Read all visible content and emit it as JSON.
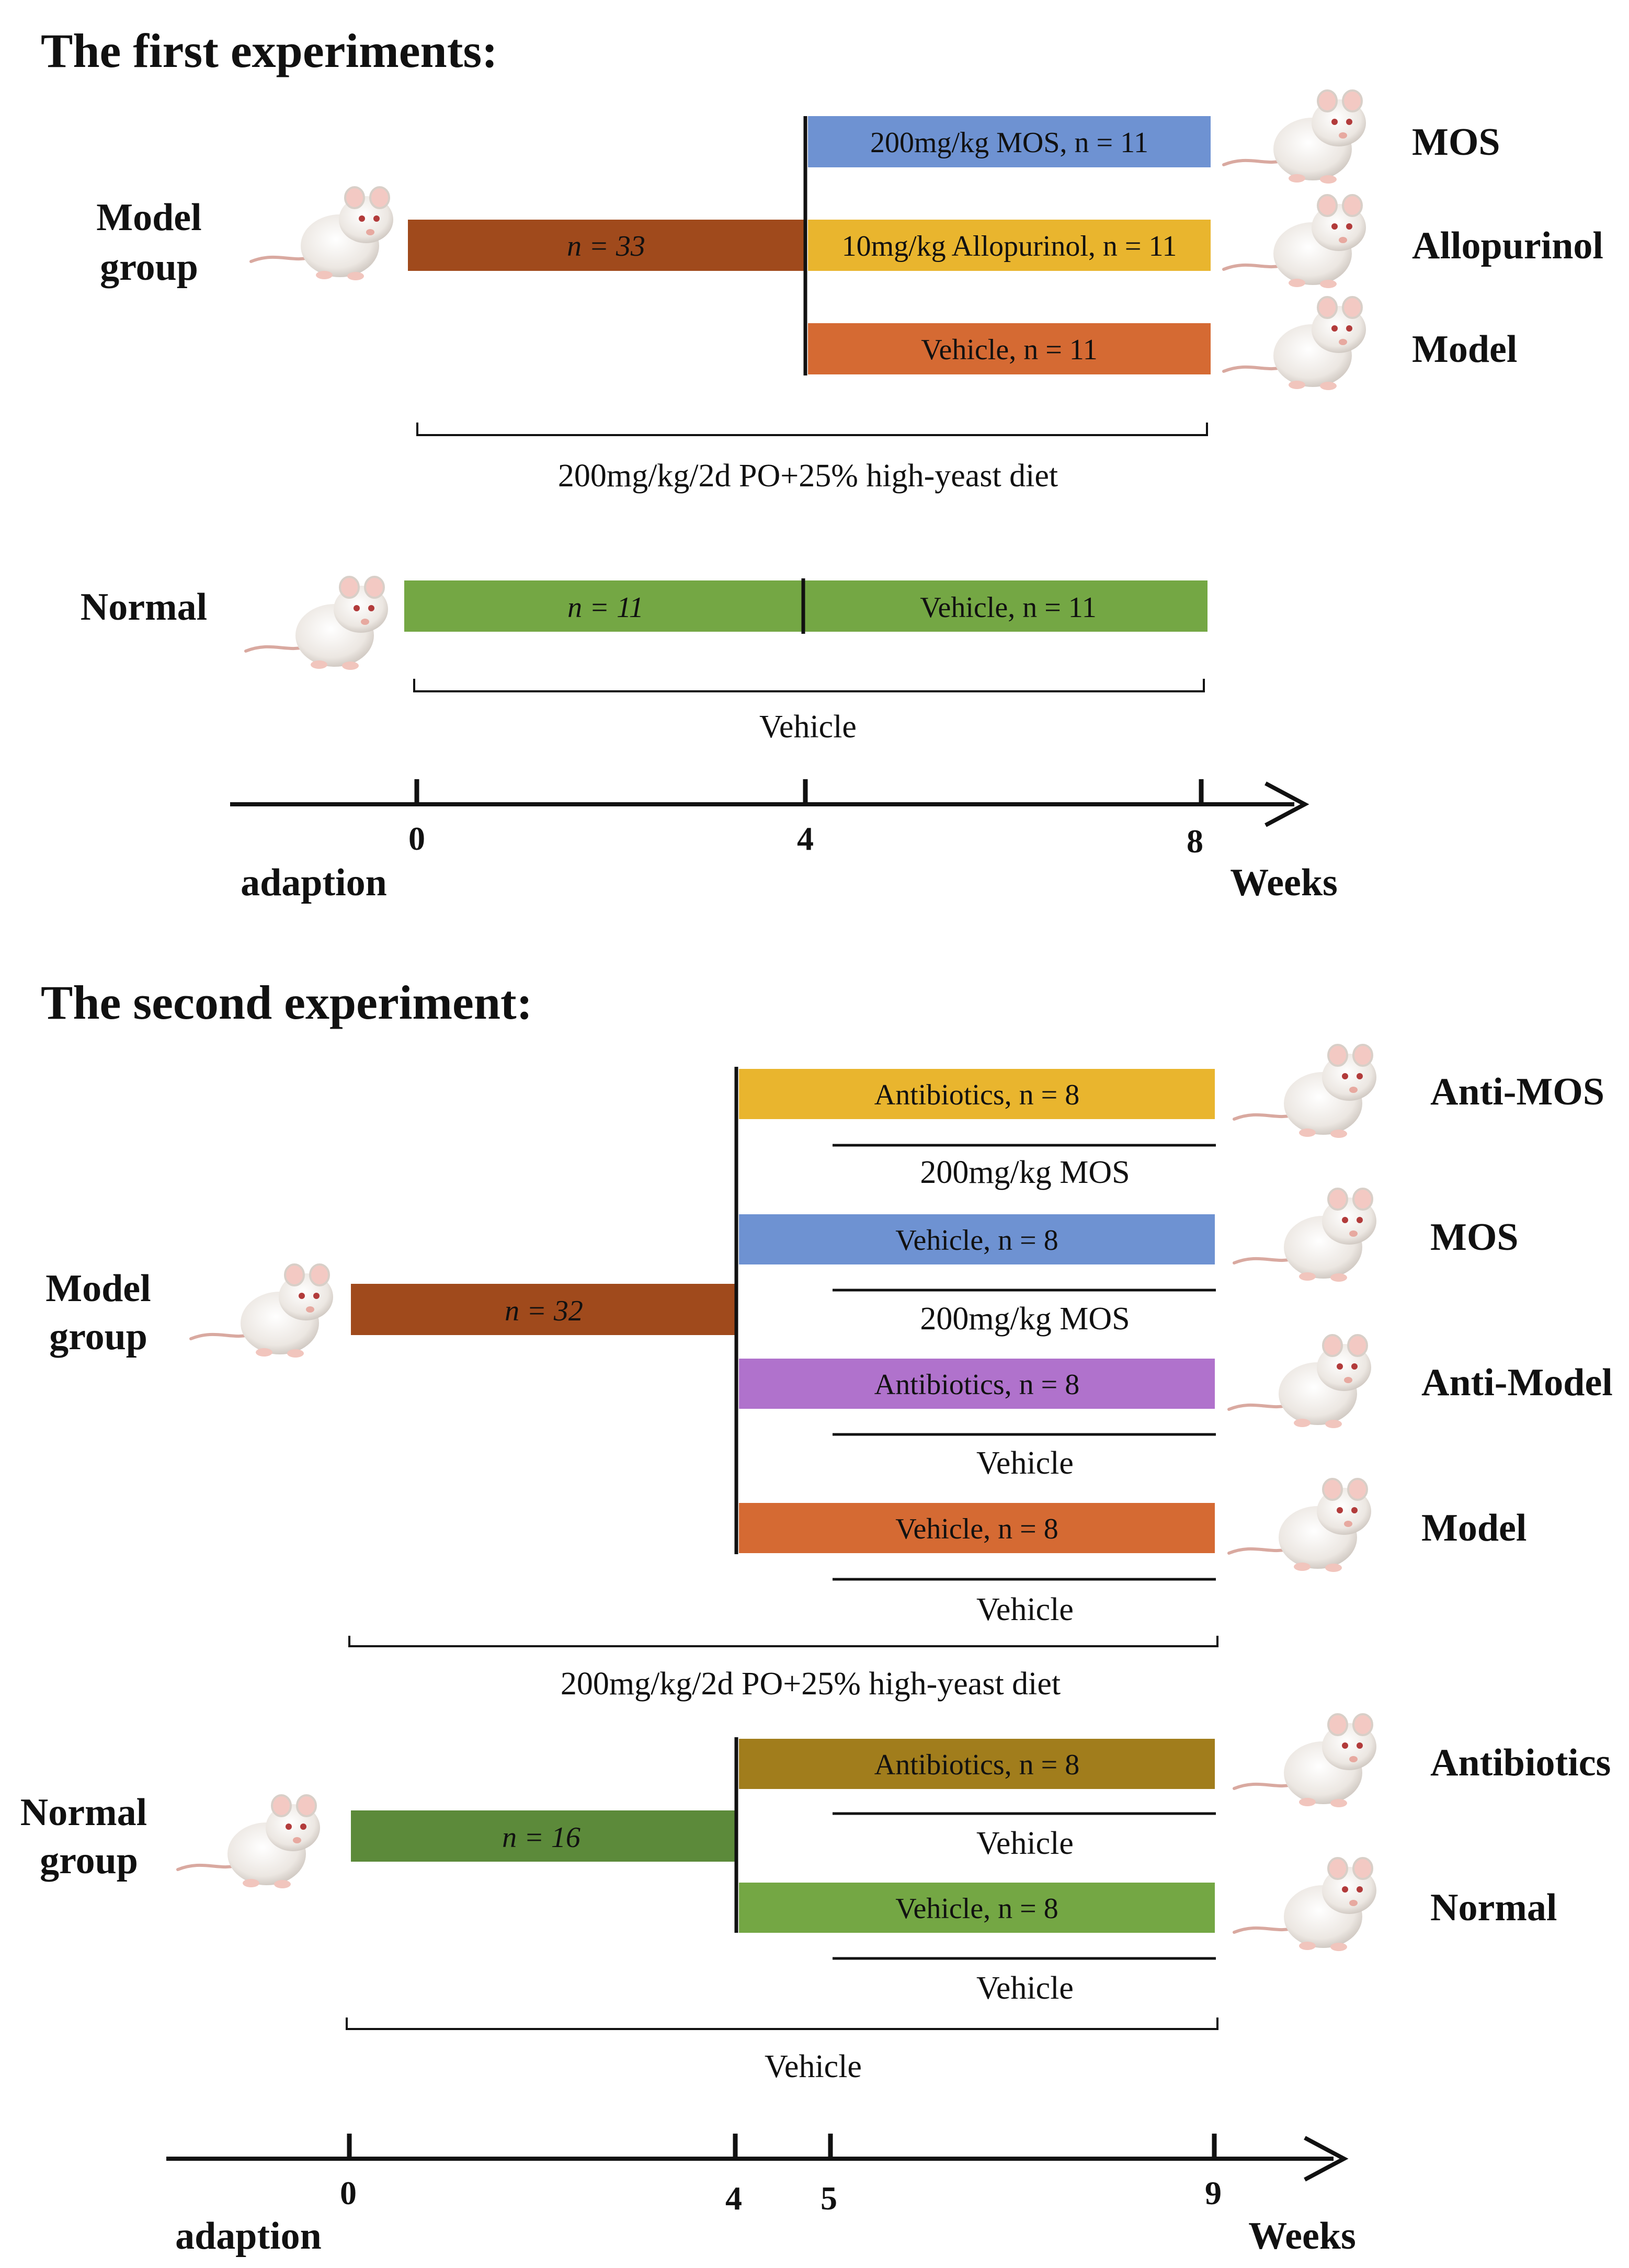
{
  "colors": {
    "brown": "#A04A1C",
    "blue": "#6E92D2",
    "yellow": "#E9B52E",
    "orange": "#D56A33",
    "green": "#74A744",
    "dark_green": "#5C8A3A",
    "purple": "#B072CC",
    "olive": "#A17D1C"
  },
  "exp1": {
    "title": "The first experiments:",
    "model_label_1": "Model",
    "model_label_2": "group",
    "bar_model": "n = 33",
    "bar_mos": "200mg/kg MOS, n = 11",
    "bar_allo": "10mg/kg Allopurinol, n = 11",
    "bar_vehicle": "Vehicle, n = 11",
    "group_mos": "MOS",
    "group_allo": "Allopurinol",
    "group_model": "Model",
    "diet_label": "200mg/kg/2d PO+25% high-yeast diet",
    "normal_label": "Normal",
    "bar_normal_a": "n = 11",
    "bar_normal_b": "Vehicle, n = 11",
    "normal_vehicle": "Vehicle",
    "axis_ticks": [
      "0",
      "4",
      "8"
    ],
    "axis_start": "adaption",
    "axis_end": "Weeks"
  },
  "exp2": {
    "title": "The second experiment:",
    "model_label_1": "Model",
    "model_label_2": "group",
    "bar_model": "n = 32",
    "bar_anti_mos": "Antibiotics, n = 8",
    "sub_anti_mos": "200mg/kg MOS",
    "bar_mos": "Vehicle, n = 8",
    "sub_mos": "200mg/kg MOS",
    "bar_anti_model": "Antibiotics, n = 8",
    "sub_anti_model": "Vehicle",
    "bar_model_v": "Vehicle, n = 8",
    "sub_model": "Vehicle",
    "group_anti_mos": "Anti-MOS",
    "group_mos": "MOS",
    "group_anti_model": "Anti-Model",
    "group_model": "Model",
    "diet_label": "200mg/kg/2d PO+25% high-yeast diet",
    "normal_label_1": "Normal",
    "normal_label_2": "group",
    "bar_normal": "n = 16",
    "bar_antibiotics": "Antibiotics, n = 8",
    "sub_antibiotics": "Vehicle",
    "bar_normal_v": "Vehicle, n = 8",
    "sub_normal": "Vehicle",
    "group_antibiotics": "Antibiotics",
    "group_normal": "Normal",
    "normal_vehicle": "Vehicle",
    "axis_ticks": [
      "0",
      "4",
      "5",
      "9"
    ],
    "axis_start": "adaption",
    "axis_end": "Weeks"
  }
}
